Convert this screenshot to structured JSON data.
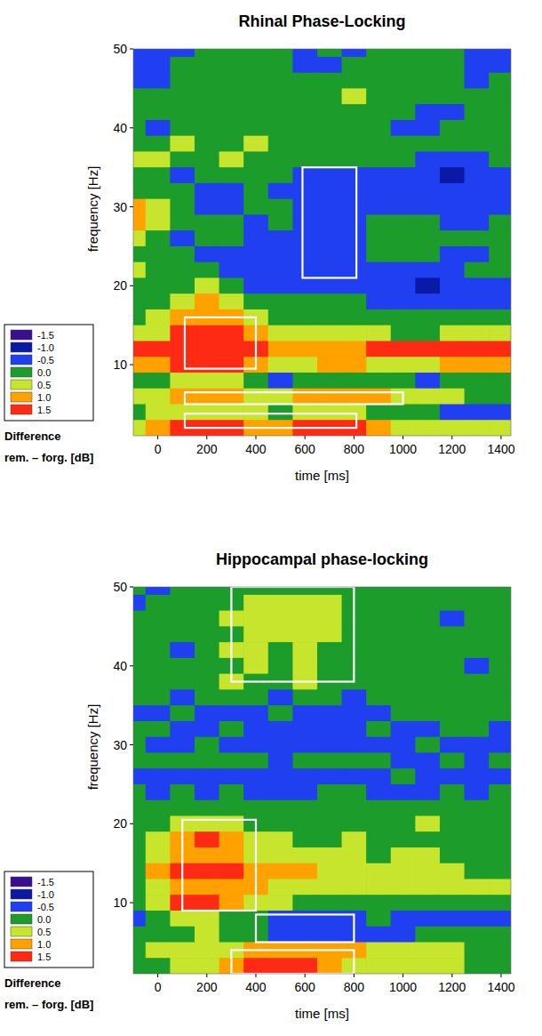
{
  "chart_data": [
    {
      "type": "heatmap",
      "title": "Rhinal Phase-Locking",
      "x_label": "time [ms]",
      "y_label": "frequency [Hz]",
      "xlim": [
        -100,
        1440
      ],
      "ylim": [
        1,
        50
      ],
      "xticks": [
        0,
        200,
        400,
        600,
        800,
        1000,
        1200,
        1400
      ],
      "yticks": [
        10,
        20,
        30,
        40,
        50
      ],
      "x": [
        -100,
        0,
        100,
        200,
        300,
        400,
        500,
        600,
        700,
        800,
        900,
        1000,
        1100,
        1200,
        1300,
        1400
      ],
      "y": [
        50,
        48,
        46,
        44,
        42,
        40,
        38,
        36,
        34,
        32,
        30,
        28,
        26,
        24,
        22,
        20,
        18,
        16,
        14,
        12,
        10,
        8,
        6,
        4,
        2
      ],
      "z": [
        [
          -0.5,
          -0.5,
          -0.5,
          0,
          0,
          0,
          0,
          -0.5,
          0,
          -0.5,
          0,
          0,
          0,
          0,
          -0.5,
          -0.5
        ],
        [
          -0.5,
          -0.5,
          0,
          0,
          0,
          0,
          0,
          -0.5,
          -0.5,
          0,
          0,
          0,
          0,
          0,
          -0.5,
          -0.5
        ],
        [
          -0.5,
          -0.5,
          0,
          0,
          0,
          0,
          0,
          0,
          0,
          0,
          0,
          0,
          0,
          0,
          -0.5,
          0
        ],
        [
          0,
          0,
          0,
          0,
          0,
          0,
          0,
          0,
          0,
          0.5,
          0,
          0,
          0,
          0,
          0,
          0
        ],
        [
          0,
          0,
          0,
          0,
          0,
          0,
          0,
          0,
          0,
          0,
          0,
          0,
          -0.5,
          -0.5,
          0,
          0
        ],
        [
          0,
          -0.5,
          0,
          0,
          0,
          0,
          0,
          0,
          0,
          0,
          0,
          -0.5,
          -0.5,
          0,
          0,
          0
        ],
        [
          0,
          0,
          0.5,
          0,
          0,
          0.5,
          0,
          0,
          0,
          0,
          0,
          0,
          0,
          0,
          0,
          0
        ],
        [
          0.5,
          0.5,
          0,
          0,
          0.5,
          0,
          0,
          0,
          0,
          0,
          0,
          0,
          -0.5,
          -0.5,
          -0.5,
          0
        ],
        [
          0,
          0,
          -0.5,
          0,
          0,
          0,
          0,
          -0.5,
          -0.5,
          -0.5,
          -0.5,
          -0.5,
          -0.5,
          -1,
          -0.5,
          -0.5
        ],
        [
          0,
          0,
          0,
          -0.5,
          -0.5,
          0,
          -0.5,
          -0.5,
          -0.5,
          -0.5,
          -0.5,
          -0.5,
          -0.5,
          -0.5,
          -0.5,
          -0.5
        ],
        [
          1,
          0.5,
          0,
          -0.5,
          -0.5,
          0,
          0,
          -0.5,
          -0.5,
          -0.5,
          -0.5,
          -0.5,
          -0.5,
          -0.5,
          -0.5,
          -0.5
        ],
        [
          1,
          0.5,
          0,
          0,
          0,
          -0.5,
          0,
          -0.5,
          -0.5,
          -0.5,
          0,
          0,
          0,
          -0.5,
          -0.5,
          0
        ],
        [
          0.5,
          0,
          -0.5,
          0,
          0,
          -0.5,
          -0.5,
          -0.5,
          -0.5,
          -0.5,
          0,
          0,
          0,
          0,
          0,
          0
        ],
        [
          0,
          0,
          0,
          -0.5,
          -0.5,
          -0.5,
          -0.5,
          -0.5,
          -0.5,
          -0.5,
          0,
          0,
          0,
          -0.5,
          -0.5,
          0
        ],
        [
          0.5,
          0,
          0,
          0,
          -0.5,
          -0.5,
          -0.5,
          -0.5,
          -0.5,
          -0.5,
          -0.5,
          -0.5,
          -0.5,
          -0.5,
          0,
          0
        ],
        [
          0,
          0,
          0,
          0.5,
          0,
          -0.5,
          -0.5,
          -0.5,
          -0.5,
          -0.5,
          -0.5,
          -0.5,
          -1,
          -0.5,
          -0.5,
          -0.5
        ],
        [
          0,
          0,
          0.5,
          1,
          0.5,
          0,
          0,
          0,
          0,
          0,
          -0.5,
          -0.5,
          -0.5,
          -0.5,
          -0.5,
          -0.5
        ],
        [
          0,
          0.5,
          1,
          1,
          1,
          0.5,
          0,
          0,
          0,
          0,
          0,
          0,
          0,
          0,
          0,
          0
        ],
        [
          0.5,
          0.5,
          1.5,
          1.5,
          1.5,
          1,
          0.5,
          0.5,
          0.5,
          0.5,
          0.5,
          0,
          0,
          0.5,
          0.5,
          0.5
        ],
        [
          1.5,
          1.5,
          1.5,
          1.5,
          1.5,
          1.5,
          1,
          1,
          1,
          1,
          1.5,
          1.5,
          1.5,
          1.5,
          1.5,
          1.5
        ],
        [
          1,
          1,
          1.5,
          1.5,
          1.5,
          1,
          0.5,
          0.5,
          1,
          1,
          0.5,
          0.5,
          0.5,
          1,
          1,
          1
        ],
        [
          0,
          0,
          0.5,
          0.5,
          0.5,
          0,
          -0.5,
          0,
          0,
          0,
          0,
          0,
          -0.5,
          0,
          0,
          0
        ],
        [
          0.5,
          0.5,
          1,
          1,
          1,
          0.5,
          0.5,
          1,
          1,
          1,
          1,
          0.5,
          0.5,
          0.5,
          0,
          0
        ],
        [
          0,
          0.5,
          0.5,
          0.5,
          0.5,
          0.5,
          0,
          0.5,
          0.5,
          0.5,
          0,
          0,
          0,
          -0.5,
          -0.5,
          -0.5
        ],
        [
          0.5,
          1,
          1.5,
          1.5,
          1.5,
          1,
          1,
          1.5,
          1.5,
          1.5,
          1,
          0.5,
          0.5,
          0.5,
          0.5,
          0.5
        ]
      ],
      "boxes": [
        {
          "x": [
            590,
            810
          ],
          "y": [
            21,
            35
          ]
        },
        {
          "x": [
            110,
            400
          ],
          "y": [
            9.5,
            16
          ]
        },
        {
          "x": [
            110,
            1000
          ],
          "y": [
            5,
            6.5
          ]
        },
        {
          "x": [
            110,
            810
          ],
          "y": [
            2,
            3.8
          ]
        }
      ],
      "colorbar": {
        "title": "Difference",
        "label": "rem. – forg. [dB]",
        "levels": [
          -1.5,
          -1.0,
          -0.5,
          0.0,
          0.5,
          1.0,
          1.5
        ],
        "level_labels": [
          "-1.5",
          "-1.0",
          "-0.5",
          "0.0",
          "0.5",
          "1.0",
          "1.5"
        ],
        "colors": [
          "#3a0f8f",
          "#0b1aa6",
          "#1f3ff0",
          "#1c9c2a",
          "#c6e52c",
          "#ffa200",
          "#ff2a14"
        ]
      }
    },
    {
      "type": "heatmap",
      "title": "Hippocampal phase-locking",
      "x_label": "time [ms]",
      "y_label": "frequency [Hz]",
      "xlim": [
        -100,
        1440
      ],
      "ylim": [
        1,
        50
      ],
      "xticks": [
        0,
        200,
        400,
        600,
        800,
        1000,
        1200,
        1400
      ],
      "yticks": [
        10,
        20,
        30,
        40,
        50
      ],
      "x": [
        -100,
        0,
        100,
        200,
        300,
        400,
        500,
        600,
        700,
        800,
        900,
        1000,
        1100,
        1200,
        1300,
        1400
      ],
      "y": [
        50,
        48,
        46,
        44,
        42,
        40,
        38,
        36,
        34,
        32,
        30,
        28,
        26,
        24,
        22,
        20,
        18,
        16,
        14,
        12,
        10,
        8,
        6,
        4,
        2
      ],
      "z": [
        [
          0,
          -0.5,
          0,
          0,
          0,
          0,
          0,
          0,
          0,
          0,
          0,
          0,
          0,
          0,
          0,
          0
        ],
        [
          -0.5,
          0,
          0,
          0,
          0,
          0.5,
          0.5,
          0.5,
          0.5,
          0,
          0,
          0,
          0,
          0,
          0,
          0
        ],
        [
          0,
          0,
          0,
          0,
          0.5,
          0.5,
          0.5,
          0.5,
          0.5,
          0,
          0,
          0,
          0,
          -0.5,
          0,
          0
        ],
        [
          0,
          0,
          0,
          0,
          0,
          0.5,
          0.5,
          0.5,
          0.5,
          0,
          0,
          0,
          0,
          0,
          0,
          0
        ],
        [
          0,
          0,
          -0.5,
          0,
          0.5,
          0.5,
          0,
          0.5,
          0,
          0,
          0,
          0,
          0,
          0,
          0,
          0
        ],
        [
          0,
          0,
          0,
          0,
          0,
          0.5,
          0,
          0.5,
          0,
          0,
          0,
          0,
          0,
          0,
          -0.5,
          0
        ],
        [
          0,
          0,
          0,
          0,
          0.5,
          0,
          0,
          0.5,
          0,
          0,
          0,
          0,
          0,
          0,
          0,
          0
        ],
        [
          0,
          0,
          -0.5,
          0,
          0,
          0,
          -0.5,
          0,
          0,
          -0.5,
          0,
          0,
          0,
          0,
          0,
          0
        ],
        [
          -0.5,
          -0.5,
          0,
          -0.5,
          -0.5,
          -0.5,
          0,
          -0.5,
          -0.5,
          -0.5,
          -0.5,
          0,
          0,
          0,
          0,
          0
        ],
        [
          0,
          0,
          -0.5,
          -0.5,
          0,
          -0.5,
          -0.5,
          -0.5,
          -0.5,
          -0.5,
          0,
          -0.5,
          -0.5,
          0,
          0,
          -0.5
        ],
        [
          0,
          -0.5,
          -0.5,
          0,
          -0.5,
          -0.5,
          -0.5,
          -0.5,
          -0.5,
          -0.5,
          -0.5,
          -0.5,
          0,
          -0.5,
          -0.5,
          -0.5
        ],
        [
          0,
          0,
          0,
          0,
          0,
          0,
          -0.5,
          0,
          0,
          0,
          0,
          -0.5,
          -0.5,
          0,
          -0.5,
          0
        ],
        [
          -0.5,
          -0.5,
          -0.5,
          -0.5,
          -0.5,
          -0.5,
          -0.5,
          -0.5,
          -0.5,
          -0.5,
          -0.5,
          0,
          -0.5,
          -0.5,
          -0.5,
          -0.5
        ],
        [
          0,
          -0.5,
          0,
          -0.5,
          0,
          -0.5,
          -0.5,
          -0.5,
          0,
          0,
          -0.5,
          -0.5,
          -0.5,
          0,
          -0.5,
          0
        ],
        [
          0,
          0,
          0,
          0,
          0,
          0,
          0,
          0,
          0,
          0,
          0,
          0,
          0,
          0,
          0,
          0
        ],
        [
          0,
          0,
          0.5,
          0.5,
          0.5,
          0,
          0,
          0,
          0,
          0,
          0,
          0,
          0.5,
          0,
          0,
          0
        ],
        [
          0,
          0.5,
          1,
          1.5,
          1,
          0.5,
          0.5,
          0,
          0,
          0.5,
          0,
          0,
          0,
          0,
          0,
          0
        ],
        [
          0,
          0.5,
          1,
          1,
          1,
          0.5,
          0.5,
          0.5,
          0.5,
          0.5,
          0,
          0.5,
          0.5,
          0,
          0,
          0
        ],
        [
          0,
          1,
          1.5,
          1.5,
          1.5,
          1,
          1,
          1,
          0.5,
          0.5,
          0.5,
          0.5,
          0.5,
          0.5,
          0,
          0
        ],
        [
          0,
          0.5,
          1,
          1,
          1,
          1,
          0.5,
          0.5,
          0.5,
          0.5,
          0.5,
          0.5,
          0.5,
          0.5,
          0.5,
          0.5
        ],
        [
          0,
          0.5,
          1.5,
          1.5,
          1,
          0.5,
          0.5,
          0,
          0,
          0,
          0,
          0,
          0,
          0,
          0,
          0
        ],
        [
          -0.5,
          0,
          0.5,
          0.5,
          0,
          0,
          -0.5,
          -0.5,
          -0.5,
          -0.5,
          0,
          -0.5,
          -0.5,
          -0.5,
          -0.5,
          -0.5
        ],
        [
          0,
          0,
          0,
          0.5,
          0,
          0,
          -0.5,
          -0.5,
          -0.5,
          -0.5,
          -0.5,
          -0.5,
          0,
          0,
          0,
          0
        ],
        [
          0,
          0.5,
          0.5,
          0.5,
          0.5,
          1,
          1,
          1,
          1,
          1,
          0.5,
          0.5,
          0.5,
          0.5,
          0,
          0
        ],
        [
          0,
          0,
          0.5,
          0.5,
          1,
          1.5,
          1.5,
          1.5,
          1,
          0.5,
          0.5,
          0.5,
          0.5,
          0.5,
          0,
          0
        ]
      ],
      "boxes": [
        {
          "x": [
            300,
            800
          ],
          "y": [
            38,
            50
          ]
        },
        {
          "x": [
            100,
            400
          ],
          "y": [
            9,
            20.5
          ]
        },
        {
          "x": [
            400,
            800
          ],
          "y": [
            5,
            8.5
          ]
        },
        {
          "x": [
            300,
            800
          ],
          "y": [
            1,
            4
          ]
        }
      ],
      "colorbar": {
        "title": "Difference",
        "label": "rem. – forg. [dB]",
        "levels": [
          -1.5,
          -1.0,
          -0.5,
          0.0,
          0.5,
          1.0,
          1.5
        ],
        "level_labels": [
          "-1.5",
          "-1.0",
          "-0.5",
          "0.0",
          "0.5",
          "1.0",
          "1.5"
        ],
        "colors": [
          "#3a0f8f",
          "#0b1aa6",
          "#1f3ff0",
          "#1c9c2a",
          "#c6e52c",
          "#ffa200",
          "#ff2a14"
        ]
      }
    }
  ]
}
